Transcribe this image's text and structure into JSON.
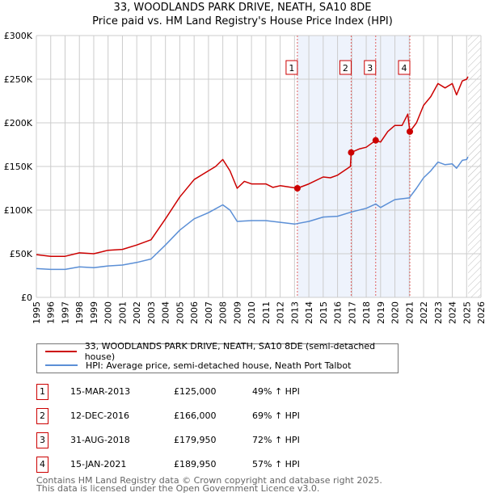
{
  "title": "33, WOODLANDS PARK DRIVE, NEATH, SA10 8DE",
  "subtitle": "Price paid vs. HM Land Registry's House Price Index (HPI)",
  "chart_data": {
    "type": "line",
    "xlim": [
      1995,
      2026
    ],
    "ylim": [
      0,
      300000
    ],
    "yticks": [
      {
        "v": 0,
        "label": "£0"
      },
      {
        "v": 50000,
        "label": "£50K"
      },
      {
        "v": 100000,
        "label": "£100K"
      },
      {
        "v": 150000,
        "label": "£150K"
      },
      {
        "v": 200000,
        "label": "£200K"
      },
      {
        "v": 250000,
        "label": "£250K"
      },
      {
        "v": 300000,
        "label": "£300K"
      }
    ],
    "xticks": [
      "1995",
      "1996",
      "1997",
      "1998",
      "1999",
      "2000",
      "2001",
      "2002",
      "2003",
      "2004",
      "2005",
      "2006",
      "2007",
      "2008",
      "2009",
      "2010",
      "2011",
      "2012",
      "2013",
      "2014",
      "2015",
      "2016",
      "2017",
      "2018",
      "2019",
      "2020",
      "2021",
      "2022",
      "2023",
      "2024",
      "2025",
      "2026"
    ],
    "shaded_range": [
      2013.2,
      2021.04
    ],
    "forecast_hatch_from": 2025.1,
    "series": [
      {
        "name": "33, WOODLANDS PARK DRIVE, NEATH, SA10 8DE (semi-detached house)",
        "color": "#cc0000",
        "x": [
          1995,
          1996,
          1997,
          1998,
          1999,
          2000,
          2001,
          2002,
          2003,
          2004,
          2005,
          2006,
          2007,
          2007.5,
          2008,
          2008.5,
          2009,
          2009.5,
          2010,
          2011,
          2011.5,
          2012,
          2013.2,
          2014,
          2015,
          2015.5,
          2016,
          2016.9,
          2016.95,
          2017.5,
          2018,
          2018.66,
          2019,
          2019.5,
          2020,
          2020.5,
          2020.9,
          2021.04,
          2021.5,
          2022,
          2022.5,
          2023,
          2023.5,
          2024,
          2024.3,
          2024.7,
          2025,
          2025.1
        ],
        "y": [
          49000,
          47000,
          47000,
          51000,
          50000,
          54000,
          55000,
          60000,
          66000,
          90000,
          115000,
          135000,
          145000,
          150000,
          158000,
          145000,
          125000,
          133000,
          130000,
          130000,
          126000,
          128000,
          125000,
          130000,
          138000,
          137000,
          140000,
          150000,
          166000,
          170000,
          172000,
          179950,
          178000,
          190000,
          197000,
          197000,
          210000,
          189950,
          200000,
          220000,
          230000,
          245000,
          240000,
          245000,
          232000,
          248000,
          250000,
          253000
        ]
      },
      {
        "name": "HPI: Average price, semi-detached house, Neath Port Talbot",
        "color": "#5b8fd6",
        "x": [
          1995,
          1996,
          1997,
          1998,
          1999,
          2000,
          2001,
          2002,
          2003,
          2004,
          2005,
          2006,
          2007,
          2008,
          2008.5,
          2009,
          2010,
          2011,
          2012,
          2013,
          2014,
          2015,
          2016,
          2017,
          2018,
          2018.66,
          2019,
          2020,
          2021,
          2021.5,
          2022,
          2022.5,
          2023,
          2023.5,
          2024,
          2024.3,
          2024.7,
          2025,
          2025.1
        ],
        "y": [
          33000,
          32000,
          32000,
          35000,
          34000,
          36000,
          37000,
          40000,
          44000,
          60000,
          77000,
          90000,
          97000,
          106000,
          100000,
          87000,
          88000,
          88000,
          86000,
          84000,
          87000,
          92000,
          93000,
          98000,
          102000,
          107000,
          103000,
          112000,
          114000,
          125000,
          137000,
          145000,
          155000,
          152000,
          153000,
          148000,
          157000,
          158000,
          161000
        ]
      }
    ],
    "sales": [
      {
        "n": "1",
        "date": "15-MAR-2013",
        "x": 2013.2,
        "price": 125000,
        "price_label": "£125,000",
        "hpi": "49% ↑ HPI"
      },
      {
        "n": "2",
        "date": "12-DEC-2016",
        "x": 2016.95,
        "price": 166000,
        "price_label": "£166,000",
        "hpi": "69% ↑ HPI"
      },
      {
        "n": "3",
        "date": "31-AUG-2018",
        "x": 2018.66,
        "price": 179950,
        "price_label": "£179,950",
        "hpi": "72% ↑ HPI"
      },
      {
        "n": "4",
        "date": "15-JAN-2021",
        "x": 2021.04,
        "price": 189950,
        "price_label": "£189,950",
        "hpi": "57% ↑ HPI"
      }
    ]
  },
  "footer": [
    "Contains HM Land Registry data © Crown copyright and database right 2025.",
    "This data is licensed under the Open Government Licence v3.0."
  ]
}
